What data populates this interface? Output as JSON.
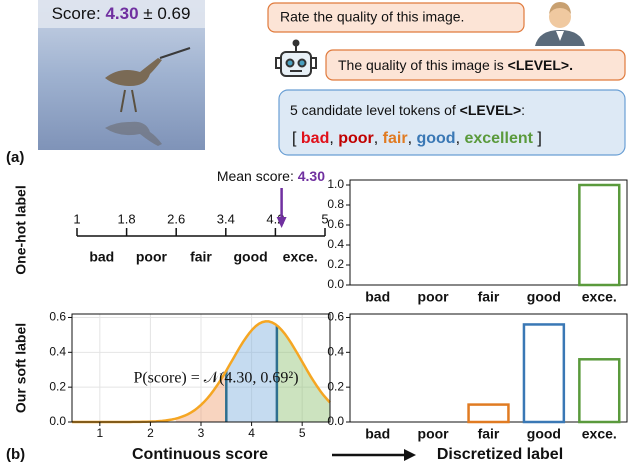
{
  "panel_a": {
    "label": "(a)",
    "score_prefix": "Score: ",
    "score_mean": "4.30",
    "pm": " ± ",
    "score_std": "0.69",
    "prompt": "Rate the quality of this image.",
    "response_prefix": "The quality of this image is ",
    "response_token": "<LEVEL>.",
    "candidates_prefix": "5 candidate level tokens of ",
    "candidates_token": "<LEVEL>",
    "candidates_suffix": ":",
    "open_bracket": "[ ",
    "close_bracket": " ]",
    "separator": ", ",
    "tokens": [
      "bad",
      "poor",
      "fair",
      "good",
      "excellent"
    ],
    "token_colors": [
      "#e0101a",
      "#c00000",
      "#e07b22",
      "#3a78b5",
      "#5a9a3c"
    ]
  },
  "panel_b": {
    "label": "(b)",
    "row_labels": [
      "One-hot label",
      "Our soft label"
    ],
    "left_caption": "Continuous score",
    "right_caption": "Discretized label"
  },
  "chart_data": [
    {
      "type": "number_line",
      "xlim": [
        1,
        5
      ],
      "xticks": [
        1,
        1.8,
        2.6,
        3.4,
        4.2,
        5
      ],
      "categories": [
        "bad",
        "poor",
        "fair",
        "good",
        "exce."
      ],
      "colors": [
        "#e0101a",
        "#c00000",
        "#e07b22",
        "#3a78b5",
        "#5a9a3c"
      ],
      "mean_label": "Mean score: ",
      "mean": 4.3,
      "mean_value_label": "4.30",
      "mean_color": "#7030a0"
    },
    {
      "type": "bar",
      "categories": [
        "bad",
        "poor",
        "fair",
        "good",
        "exce."
      ],
      "values": [
        0,
        0,
        0,
        0,
        1
      ],
      "colors": [
        "#e0101a",
        "#c00000",
        "#e07b22",
        "#3a78b5",
        "#5a9a3c"
      ],
      "ylim": [
        0,
        1.05
      ],
      "yticks": [
        {
          "value": 0,
          "label": "0.0"
        },
        {
          "value": 0.2,
          "label": "0.2"
        },
        {
          "value": 0.4,
          "label": "0.4"
        },
        {
          "value": 0.6,
          "label": "0.6"
        },
        {
          "value": 0.8,
          "label": "0.8"
        },
        {
          "value": 1,
          "label": "1.0"
        }
      ]
    },
    {
      "type": "density",
      "formula": "P(score) = 𝒩(4.30, 0.69²)",
      "mean": 4.3,
      "std": 0.69,
      "color": "#f5a623",
      "xlim": [
        0.45,
        5.55
      ],
      "xticks": [
        1,
        2,
        3,
        4,
        5
      ],
      "ylim": [
        0,
        0.62
      ],
      "yticks": [
        {
          "value": 0,
          "label": "0.0"
        },
        {
          "value": 0.2,
          "label": "0.2"
        },
        {
          "value": 0.4,
          "label": "0.4"
        },
        {
          "value": 0.6,
          "label": "0.6"
        }
      ],
      "boundaries": [
        2.5,
        3.5,
        4.5
      ],
      "region_colors": [
        "#f0a070",
        "#7fb0de",
        "#8fc070"
      ],
      "boundary_color": "#2f6f8f",
      "grid": true
    },
    {
      "type": "bar",
      "categories": [
        "bad",
        "poor",
        "fair",
        "good",
        "exce."
      ],
      "values": [
        0,
        0,
        0.1,
        0.56,
        0.36
      ],
      "colors": [
        "#e0101a",
        "#c00000",
        "#e07b22",
        "#3a78b5",
        "#5a9a3c"
      ],
      "ylim": [
        0,
        0.62
      ],
      "yticks": [
        {
          "value": 0,
          "label": "0.0"
        },
        {
          "value": 0.2,
          "label": "0.2"
        },
        {
          "value": 0.4,
          "label": "0.4"
        },
        {
          "value": 0.6,
          "label": "0.6"
        }
      ]
    }
  ]
}
